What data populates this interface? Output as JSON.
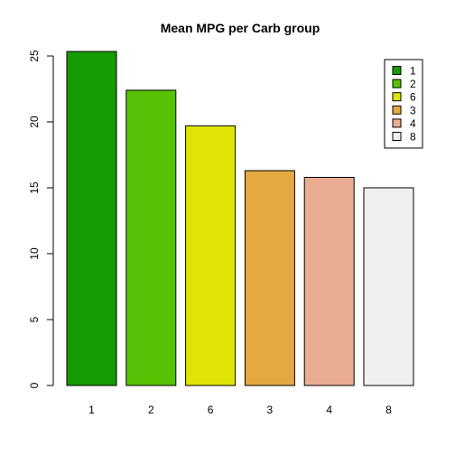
{
  "chart_data": {
    "type": "bar",
    "title": "Mean MPG per Carb group",
    "xlabel": "",
    "ylabel": "",
    "categories": [
      "1",
      "2",
      "6",
      "3",
      "4",
      "8"
    ],
    "values": [
      25.34,
      22.4,
      19.7,
      16.3,
      15.79,
      15.0
    ],
    "colors": [
      "#159b03",
      "#57c103",
      "#e0e404",
      "#e6a840",
      "#e9ad92",
      "#f0f0f0"
    ],
    "ylim": [
      0,
      26
    ],
    "yticks": [
      0,
      5,
      10,
      15,
      20,
      25
    ],
    "grid": false,
    "legend": {
      "position": "top-right",
      "entries": [
        "1",
        "2",
        "6",
        "3",
        "4",
        "8"
      ]
    }
  }
}
